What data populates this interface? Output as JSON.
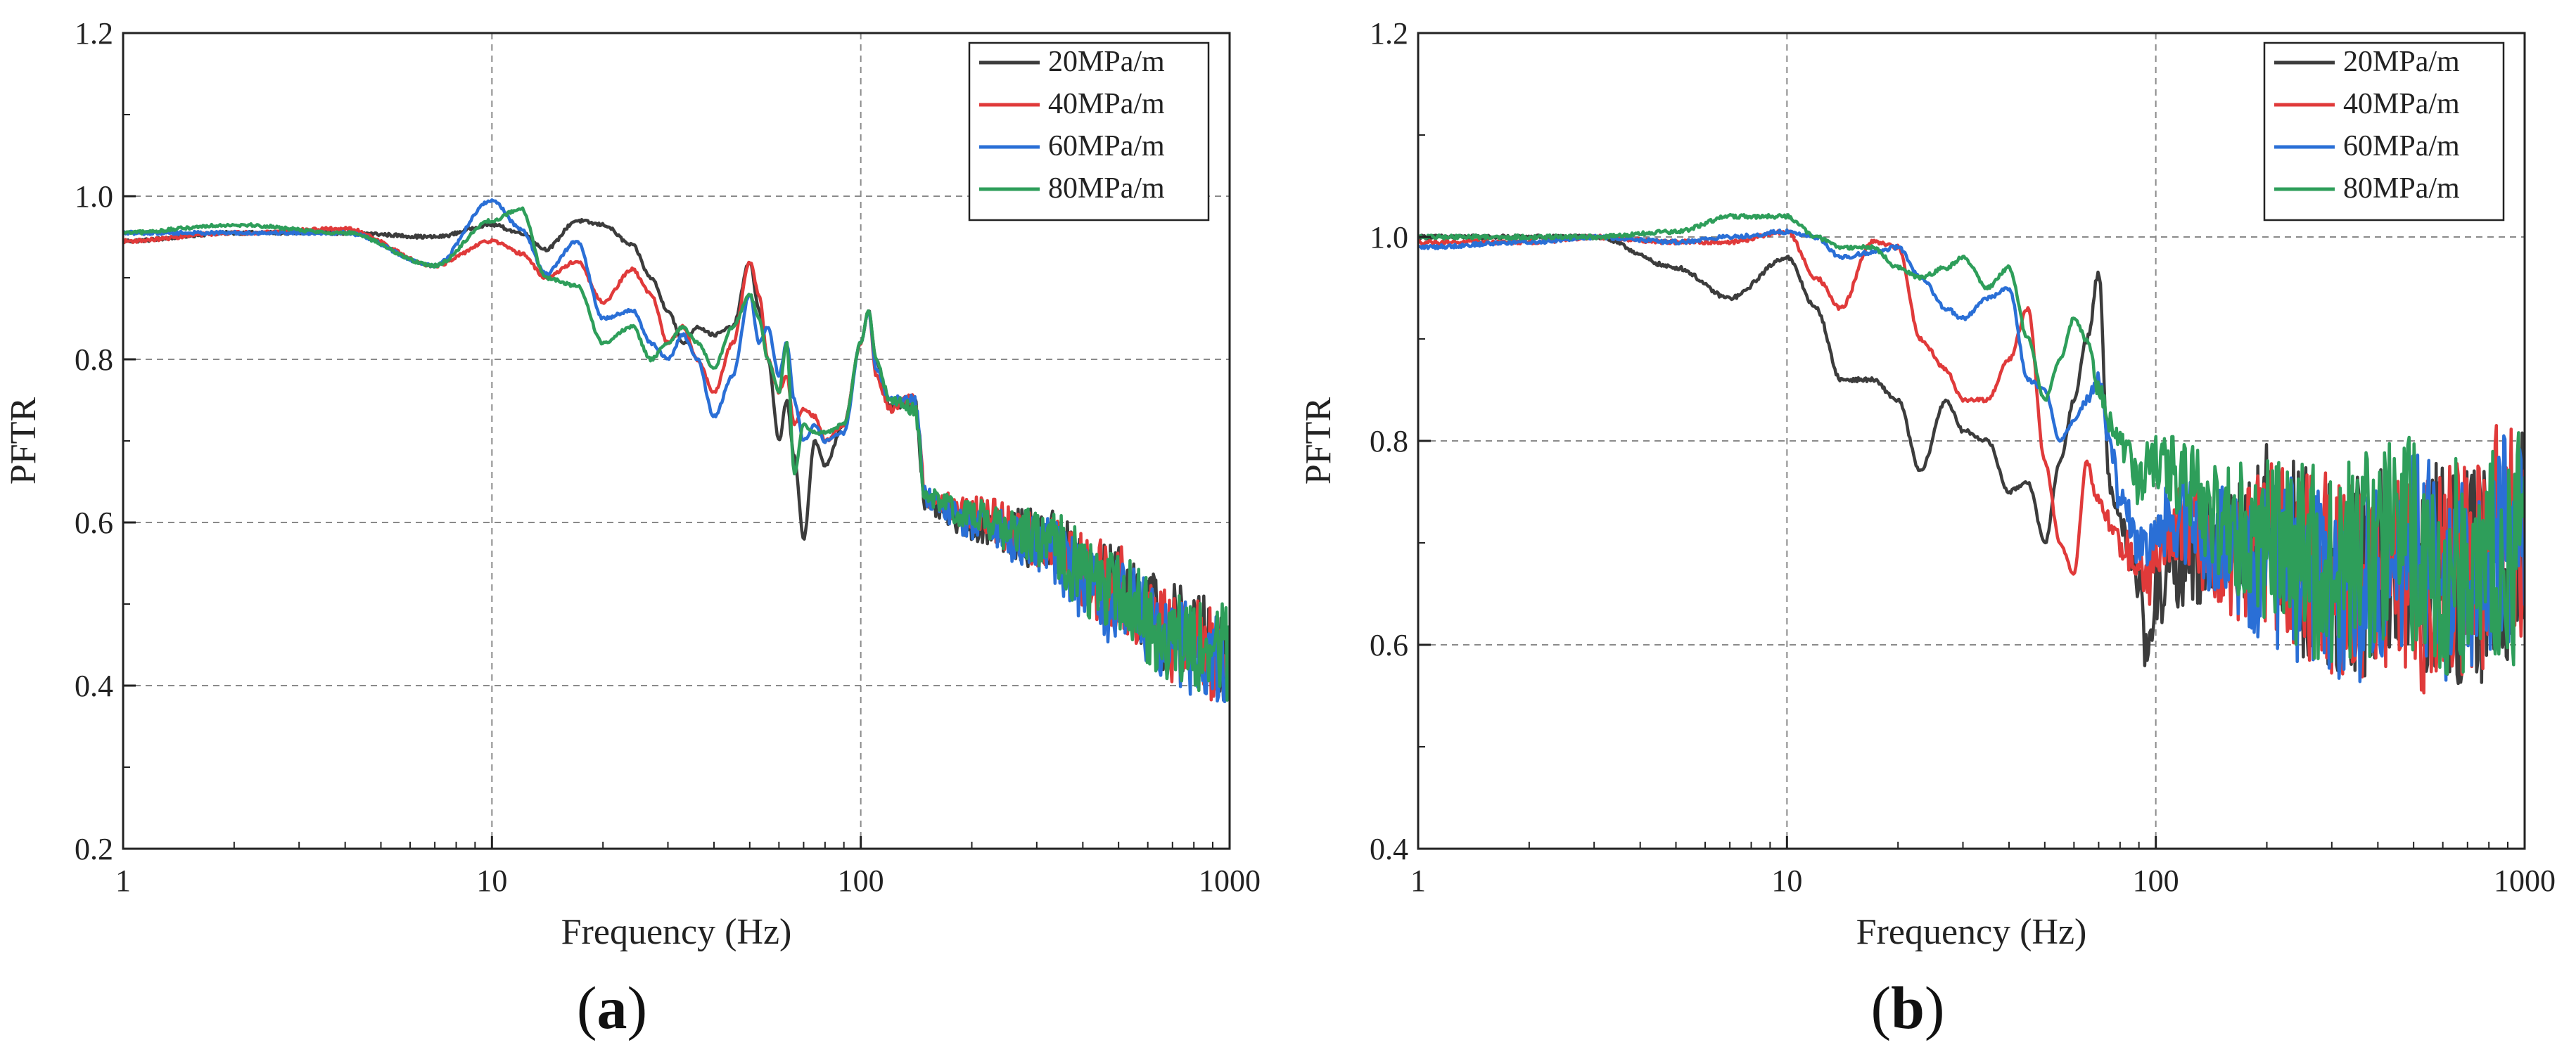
{
  "figure_title": "",
  "chart_data": [
    {
      "type": "line",
      "panel_label": {
        "open": "(",
        "letter": "a",
        "close": ")"
      },
      "title": "",
      "xlabel": "Frequency (Hz)",
      "ylabel": "PFTR",
      "xscale": "log",
      "xlim": [
        1,
        1000
      ],
      "ylim": [
        0.2,
        1.2
      ],
      "xticks": [
        "1",
        "10",
        "100",
        "1000"
      ],
      "yticks": [
        "0.2",
        "0.4",
        "0.6",
        "0.8",
        "1.0",
        "1.2"
      ],
      "grid": true,
      "legend_position": "top-right",
      "noise_start_hz": 100,
      "series": [
        {
          "name": "20MPa/m",
          "color": "#3c3c3c",
          "noise_amplitude": 0.06,
          "x": [
            1,
            2,
            4,
            7,
            10,
            12,
            14,
            17,
            20,
            24,
            27,
            30,
            33,
            36,
            40,
            45,
            50,
            53,
            56,
            60,
            63,
            66,
            70,
            75,
            80,
            90,
            100,
            105,
            110,
            120,
            140,
            150,
            200,
            300,
            500,
            700,
            1000
          ],
          "y": [
            0.945,
            0.955,
            0.955,
            0.95,
            0.965,
            0.955,
            0.935,
            0.97,
            0.965,
            0.94,
            0.9,
            0.86,
            0.82,
            0.84,
            0.83,
            0.84,
            0.92,
            0.86,
            0.8,
            0.7,
            0.75,
            0.68,
            0.58,
            0.7,
            0.67,
            0.72,
            0.82,
            0.86,
            0.8,
            0.74,
            0.75,
            0.62,
            0.6,
            0.58,
            0.52,
            0.47,
            0.44
          ]
        },
        {
          "name": "40MPa/m",
          "color": "#e03a3a",
          "noise_amplitude": 0.06,
          "x": [
            1,
            2,
            4,
            7,
            10,
            12,
            14,
            17,
            20,
            24,
            27,
            30,
            33,
            36,
            40,
            45,
            50,
            53,
            56,
            60,
            63,
            66,
            70,
            75,
            80,
            90,
            100,
            105,
            110,
            120,
            140,
            150,
            200,
            300,
            500,
            700,
            1000
          ],
          "y": [
            0.945,
            0.955,
            0.96,
            0.915,
            0.945,
            0.93,
            0.9,
            0.92,
            0.87,
            0.91,
            0.88,
            0.82,
            0.84,
            0.8,
            0.76,
            0.82,
            0.92,
            0.88,
            0.8,
            0.76,
            0.78,
            0.72,
            0.74,
            0.73,
            0.7,
            0.72,
            0.82,
            0.86,
            0.78,
            0.74,
            0.75,
            0.63,
            0.61,
            0.58,
            0.52,
            0.46,
            0.43
          ]
        },
        {
          "name": "60MPa/m",
          "color": "#2a6fd6",
          "noise_amplitude": 0.06,
          "x": [
            1,
            2,
            4,
            7,
            10,
            12,
            14,
            17,
            20,
            24,
            27,
            30,
            33,
            36,
            40,
            45,
            50,
            53,
            56,
            60,
            63,
            66,
            70,
            75,
            80,
            90,
            100,
            105,
            110,
            120,
            140,
            150,
            200,
            300,
            500,
            700,
            1000
          ],
          "y": [
            0.955,
            0.955,
            0.955,
            0.915,
            0.995,
            0.96,
            0.905,
            0.945,
            0.85,
            0.86,
            0.82,
            0.8,
            0.83,
            0.8,
            0.73,
            0.78,
            0.88,
            0.82,
            0.84,
            0.78,
            0.82,
            0.75,
            0.7,
            0.72,
            0.7,
            0.71,
            0.82,
            0.86,
            0.79,
            0.75,
            0.75,
            0.63,
            0.6,
            0.57,
            0.5,
            0.45,
            0.43
          ]
        },
        {
          "name": "80MPa/m",
          "color": "#2e9e5a",
          "noise_amplitude": 0.06,
          "x": [
            1,
            2,
            4,
            7,
            10,
            12,
            14,
            17,
            20,
            24,
            27,
            30,
            33,
            36,
            40,
            45,
            50,
            53,
            56,
            60,
            63,
            66,
            70,
            75,
            80,
            90,
            100,
            105,
            110,
            120,
            140,
            150,
            200,
            300,
            500,
            700,
            1000
          ],
          "y": [
            0.955,
            0.965,
            0.955,
            0.915,
            0.97,
            0.985,
            0.9,
            0.89,
            0.82,
            0.84,
            0.8,
            0.82,
            0.84,
            0.82,
            0.79,
            0.84,
            0.88,
            0.85,
            0.8,
            0.76,
            0.82,
            0.66,
            0.72,
            0.71,
            0.71,
            0.72,
            0.82,
            0.86,
            0.8,
            0.75,
            0.74,
            0.63,
            0.61,
            0.58,
            0.51,
            0.46,
            0.44
          ]
        }
      ]
    },
    {
      "type": "line",
      "panel_label": {
        "open": "(",
        "letter": "b",
        "close": ")"
      },
      "title": "",
      "xlabel": "Frequency (Hz)",
      "ylabel": "PFTR",
      "xscale": "log",
      "xlim": [
        1,
        1000
      ],
      "ylim": [
        0.4,
        1.2
      ],
      "xticks": [
        "1",
        "10",
        "100",
        "1000"
      ],
      "yticks": [
        "0.4",
        "0.6",
        "0.8",
        "1.0",
        "1.2"
      ],
      "grid": true,
      "legend_position": "top-right",
      "noise_start_hz": 60,
      "series": [
        {
          "name": "20MPa/m",
          "color": "#3c3c3c",
          "noise_amplitude": 0.12,
          "x": [
            1,
            2,
            3,
            5,
            7,
            10,
            12,
            14,
            17,
            20,
            23,
            27,
            30,
            35,
            40,
            45,
            50,
            55,
            60,
            65,
            70,
            75,
            80,
            90,
            95,
            100,
            120,
            150,
            200,
            300,
            500,
            700,
            1000
          ],
          "y": [
            1.0,
            1.0,
            1.0,
            0.97,
            0.94,
            0.98,
            0.93,
            0.86,
            0.86,
            0.84,
            0.77,
            0.84,
            0.81,
            0.8,
            0.75,
            0.76,
            0.7,
            0.78,
            0.84,
            0.9,
            0.96,
            0.76,
            0.72,
            0.66,
            0.58,
            0.65,
            0.68,
            0.7,
            0.72,
            0.66,
            0.68,
            0.66,
            0.7
          ]
        },
        {
          "name": "40MPa/m",
          "color": "#e03a3a",
          "noise_amplitude": 0.12,
          "x": [
            1,
            2,
            3,
            5,
            7,
            10,
            12,
            14,
            17,
            20,
            23,
            27,
            30,
            35,
            40,
            45,
            50,
            55,
            60,
            65,
            70,
            75,
            80,
            90,
            95,
            100,
            120,
            150,
            200,
            300,
            500,
            700,
            1000
          ],
          "y": [
            0.995,
            0.995,
            1.0,
            0.995,
            0.995,
            1.005,
            0.96,
            0.93,
            0.995,
            0.99,
            0.9,
            0.87,
            0.84,
            0.84,
            0.88,
            0.93,
            0.78,
            0.7,
            0.67,
            0.78,
            0.74,
            0.72,
            0.7,
            0.68,
            0.66,
            0.7,
            0.72,
            0.68,
            0.7,
            0.67,
            0.66,
            0.68,
            0.72
          ]
        },
        {
          "name": "60MPa/m",
          "color": "#2a6fd6",
          "noise_amplitude": 0.12,
          "x": [
            1,
            2,
            3,
            5,
            7,
            10,
            12,
            14,
            17,
            20,
            23,
            27,
            30,
            35,
            40,
            45,
            50,
            55,
            60,
            65,
            70,
            75,
            80,
            90,
            95,
            100,
            120,
            150,
            200,
            300,
            500,
            700,
            1000
          ],
          "y": [
            0.99,
            0.995,
            1.0,
            0.995,
            1.0,
            1.005,
            1.0,
            0.98,
            0.985,
            0.99,
            0.96,
            0.93,
            0.92,
            0.94,
            0.95,
            0.86,
            0.85,
            0.8,
            0.82,
            0.84,
            0.86,
            0.8,
            0.74,
            0.7,
            0.7,
            0.72,
            0.72,
            0.7,
            0.68,
            0.66,
            0.68,
            0.66,
            0.7
          ]
        },
        {
          "name": "80MPa/m",
          "color": "#2e9e5a",
          "noise_amplitude": 0.12,
          "x": [
            1,
            2,
            3,
            5,
            7,
            10,
            12,
            14,
            17,
            20,
            23,
            27,
            30,
            35,
            40,
            45,
            50,
            55,
            60,
            65,
            70,
            75,
            80,
            90,
            95,
            100,
            120,
            150,
            200,
            300,
            500,
            700,
            1000
          ],
          "y": [
            1.0,
            1.0,
            1.0,
            1.005,
            1.02,
            1.02,
            1.0,
            0.99,
            0.99,
            0.97,
            0.96,
            0.97,
            0.98,
            0.95,
            0.97,
            0.9,
            0.84,
            0.88,
            0.92,
            0.9,
            0.85,
            0.82,
            0.8,
            0.76,
            0.78,
            0.78,
            0.76,
            0.72,
            0.7,
            0.68,
            0.7,
            0.67,
            0.7
          ]
        }
      ]
    }
  ]
}
